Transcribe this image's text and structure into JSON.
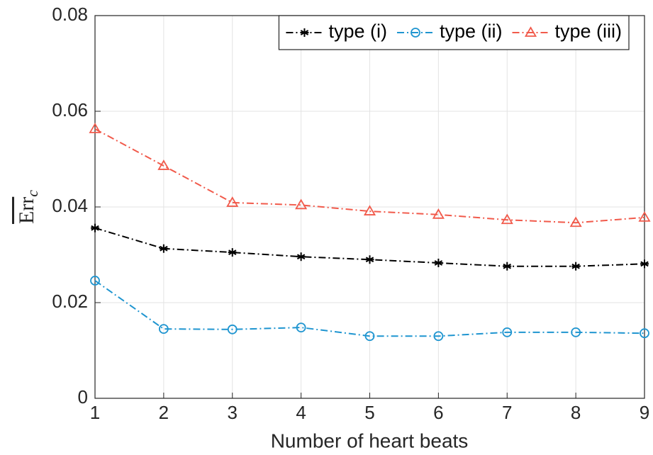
{
  "chart_data": {
    "type": "line",
    "xlabel": "Number of heart beats",
    "ylabel": "Err",
    "ylabel_subscript": "c",
    "x": [
      1,
      2,
      3,
      4,
      5,
      6,
      7,
      8,
      9
    ],
    "series": [
      {
        "name": "type (i)",
        "color": "#000000",
        "marker": "asterisk",
        "values": [
          0.0356,
          0.0313,
          0.0305,
          0.0296,
          0.029,
          0.0283,
          0.0276,
          0.0276,
          0.0281
        ]
      },
      {
        "name": "type (ii)",
        "color": "#1f95d0",
        "marker": "circle",
        "values": [
          0.0246,
          0.0145,
          0.0144,
          0.0148,
          0.013,
          0.013,
          0.0138,
          0.0138,
          0.0136
        ]
      },
      {
        "name": "type (iii)",
        "color": "#f15a4b",
        "marker": "triangle",
        "values": [
          0.0563,
          0.0486,
          0.0409,
          0.0404,
          0.0391,
          0.0384,
          0.0373,
          0.0367,
          0.0378
        ]
      }
    ],
    "xlim": [
      1,
      9
    ],
    "xticks": [
      1,
      2,
      3,
      4,
      5,
      6,
      7,
      8,
      9
    ],
    "ylim": [
      0,
      0.08
    ],
    "yticks": [
      0,
      0.02,
      0.04,
      0.06,
      0.08
    ],
    "grid": true,
    "legend": "top-right"
  }
}
